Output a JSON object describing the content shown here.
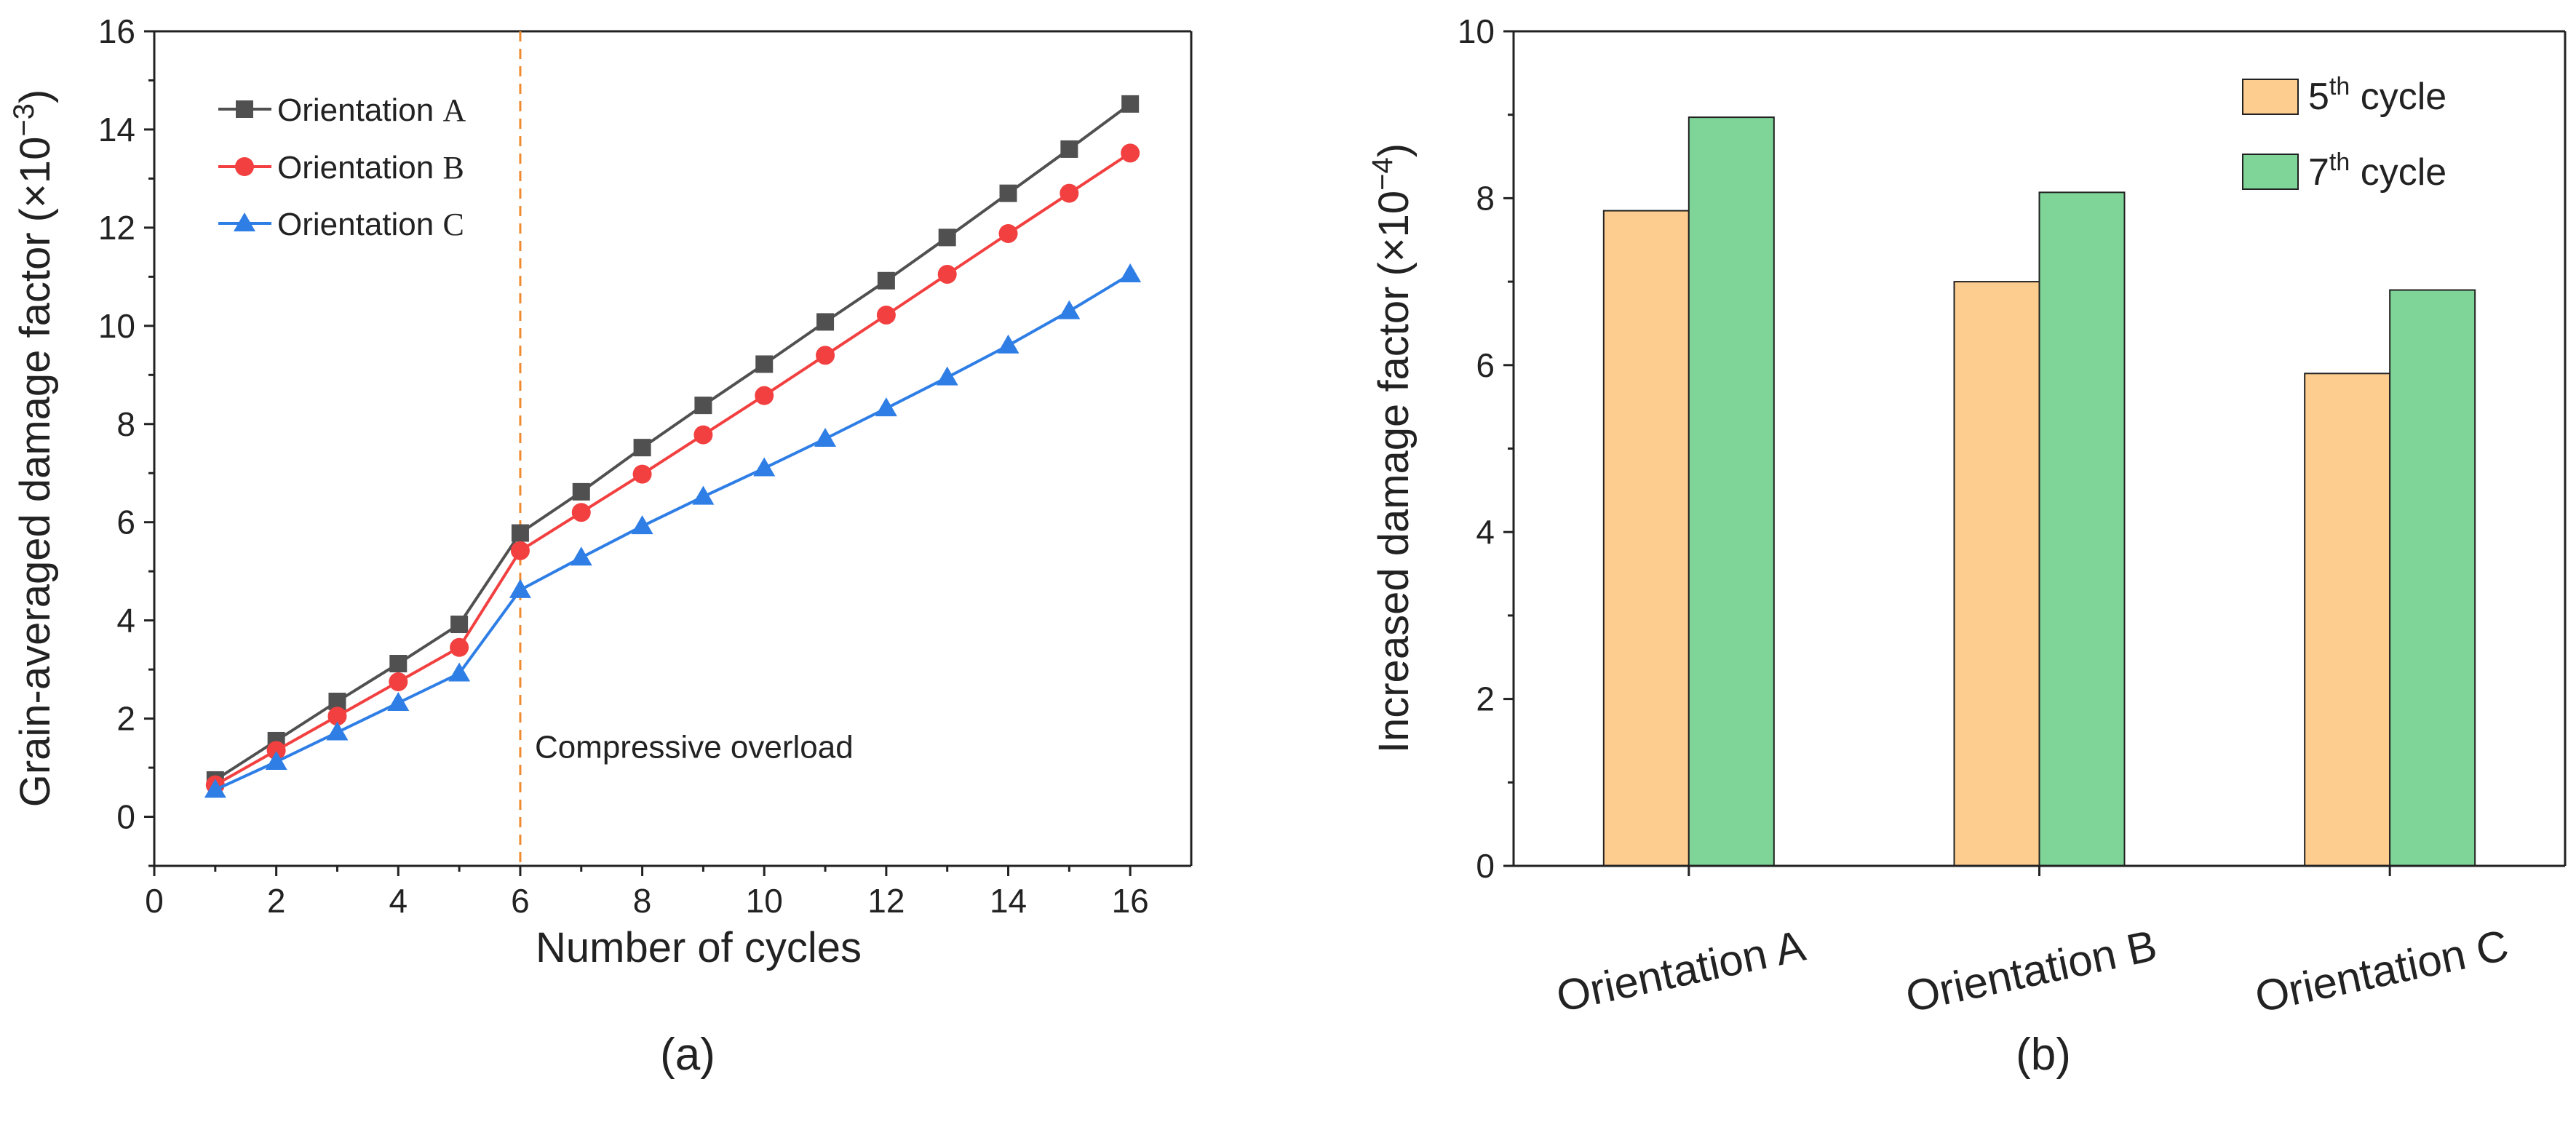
{
  "chart_data": [
    {
      "type": "line",
      "panel_label": "(a)",
      "xlabel": "Number of cycles",
      "ylabel": "Grain-averaged damage factor",
      "ylabel_unit": "(×10",
      "ylabel_exp": "−3",
      "ylabel_close": ")",
      "xlim": [
        0,
        17
      ],
      "ylim": [
        -1,
        16
      ],
      "xticks": [
        0,
        2,
        4,
        6,
        8,
        10,
        12,
        14,
        16
      ],
      "yticks": [
        0,
        2,
        4,
        6,
        8,
        10,
        12,
        14,
        16
      ],
      "x": [
        1,
        2,
        3,
        4,
        5,
        6,
        7,
        8,
        9,
        10,
        11,
        12,
        13,
        14,
        15,
        16
      ],
      "series": [
        {
          "name_prefix": "Orientation ",
          "name_suffix": "A",
          "color": "#505050",
          "marker": "square",
          "values": [
            0.75,
            1.55,
            2.35,
            3.12,
            3.92,
            5.78,
            6.62,
            7.52,
            8.38,
            9.22,
            10.08,
            10.92,
            11.8,
            12.7,
            13.6,
            14.52
          ]
        },
        {
          "name_prefix": "Orientation ",
          "name_suffix": "B",
          "color": "#f24040",
          "marker": "circle",
          "values": [
            0.65,
            1.35,
            2.05,
            2.75,
            3.45,
            5.42,
            6.2,
            6.98,
            7.78,
            8.58,
            9.4,
            10.22,
            11.05,
            11.88,
            12.7,
            13.52
          ]
        },
        {
          "name_prefix": "Orientation ",
          "name_suffix": "C",
          "color": "#2e7ee6",
          "marker": "triangle",
          "values": [
            0.55,
            1.12,
            1.72,
            2.32,
            2.92,
            4.62,
            5.28,
            5.92,
            6.52,
            7.1,
            7.7,
            8.32,
            8.95,
            9.6,
            10.3,
            11.05
          ]
        }
      ],
      "annotation": {
        "text": "Compressive overload",
        "x": 6,
        "color": "#f08a2e"
      }
    },
    {
      "type": "bar",
      "panel_label": "(b)",
      "xlabel": "",
      "ylabel": "Increased damage factor",
      "ylabel_unit": "(×10",
      "ylabel_exp": "−4",
      "ylabel_close": ")",
      "ylim": [
        0,
        10
      ],
      "yticks": [
        0,
        2,
        4,
        6,
        8,
        10
      ],
      "categories": [
        "Orientation A",
        "Orientation B",
        "Orientation C"
      ],
      "series": [
        {
          "name_num": "5",
          "name_sup": "th",
          "name_rest": " cycle",
          "color": "#fdcc8f",
          "values": [
            7.85,
            7.0,
            5.9
          ]
        },
        {
          "name_num": "7",
          "name_sup": "th",
          "name_rest": " cycle",
          "color": "#7ed597",
          "values": [
            8.97,
            8.07,
            6.9
          ]
        }
      ]
    }
  ]
}
